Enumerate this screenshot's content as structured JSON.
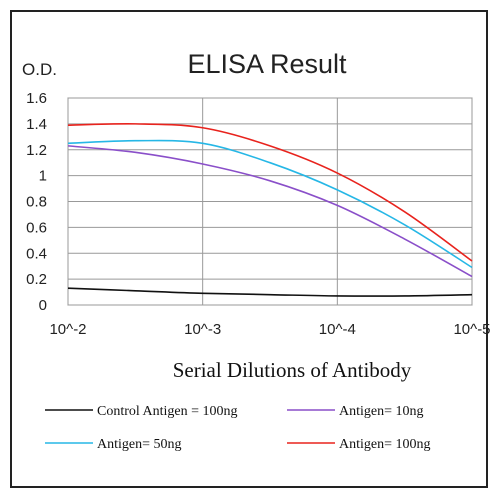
{
  "chart_data": {
    "type": "line",
    "title": "ELISA Result",
    "ylabel": "O.D.",
    "xlabel": "Serial Dilutions of Antibody",
    "x_categories": [
      "10^-2",
      "10^-3",
      "10^-4",
      "10^-5"
    ],
    "x": [
      0,
      0.5,
      1,
      1.5,
      2,
      2.5,
      3
    ],
    "ylim": [
      0,
      1.6
    ],
    "yticks": [
      "0",
      "0.2",
      "0.4",
      "0.6",
      "0.8",
      "1",
      "1.2",
      "1.4",
      "1.6"
    ],
    "grid": true,
    "legend_position": "bottom",
    "series": [
      {
        "name": "Control Antigen = 100ng",
        "color": "#111111",
        "values": [
          0.13,
          0.11,
          0.09,
          0.08,
          0.07,
          0.07,
          0.08
        ]
      },
      {
        "name": "Antigen= 10ng",
        "color": "#8a4fc9",
        "values": [
          1.23,
          1.18,
          1.09,
          0.96,
          0.77,
          0.51,
          0.22
        ]
      },
      {
        "name": "Antigen= 50ng",
        "color": "#26b7e6",
        "values": [
          1.25,
          1.27,
          1.25,
          1.1,
          0.89,
          0.62,
          0.29
        ]
      },
      {
        "name": "Antigen= 100ng",
        "color": "#e8231d",
        "values": [
          1.39,
          1.4,
          1.37,
          1.23,
          1.02,
          0.72,
          0.34
        ]
      }
    ]
  }
}
